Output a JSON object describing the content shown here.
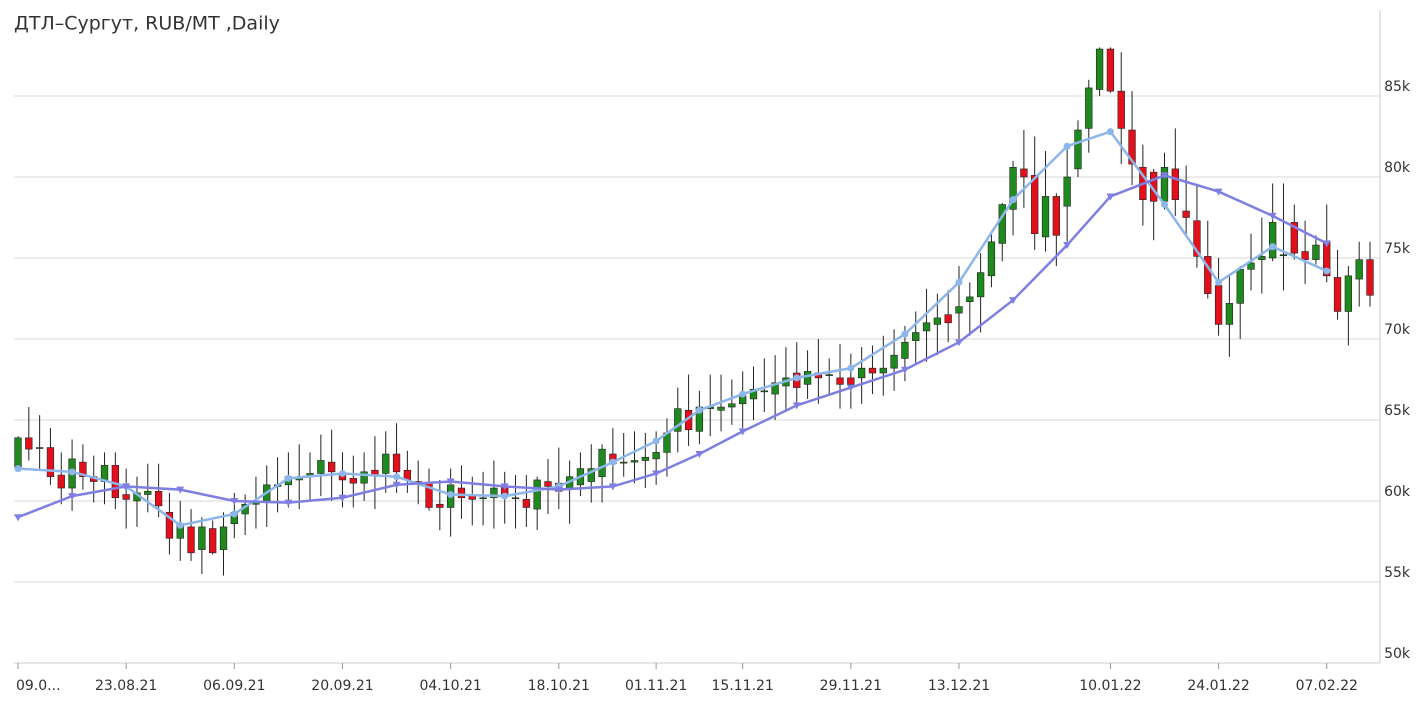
{
  "chart_data": {
    "type": "candlestick",
    "title": "ДТЛ–Сургут, RUB/MT ,Daily",
    "categories": [
      "09.0...",
      null,
      null,
      null,
      null,
      null,
      null,
      null,
      null,
      null,
      "23.08.21",
      null,
      null,
      null,
      null,
      null,
      null,
      null,
      null,
      null,
      "06.09.21",
      null,
      null,
      null,
      null,
      null,
      null,
      null,
      null,
      null,
      "20.09.21",
      null,
      null,
      null,
      null,
      null,
      null,
      null,
      null,
      null,
      "04.10.21",
      null,
      null,
      null,
      null,
      null,
      null,
      null,
      null,
      null,
      "18.10.21",
      null,
      null,
      null,
      null,
      null,
      null,
      null,
      null,
      "01.11.21",
      null,
      null,
      null,
      null,
      null,
      null,
      null,
      "15.11.21",
      null,
      null,
      null,
      null,
      null,
      null,
      null,
      null,
      null,
      "29.11.21",
      null,
      null,
      null,
      null,
      null,
      null,
      null,
      null,
      null,
      "13.12.21",
      null,
      null,
      null,
      null,
      null,
      null,
      null,
      null,
      null,
      null,
      null,
      null,
      null,
      "10.01.22",
      null,
      null,
      null,
      null,
      null,
      null,
      null,
      null,
      null,
      "24.01.22",
      null,
      null,
      null,
      null,
      null,
      null,
      null,
      null,
      null,
      "07.02.22",
      null,
      null,
      null,
      null
    ],
    "open": [
      62100,
      63900,
      63300,
      63300,
      61600,
      60800,
      62400,
      61500,
      61200,
      62200,
      60400,
      60000,
      60400,
      60600,
      59300,
      57700,
      58400,
      57000,
      58300,
      57000,
      58600,
      59200,
      59800,
      60000,
      60900,
      61000,
      61300,
      61500,
      61700,
      62400,
      61700,
      61400,
      61100,
      61900,
      61700,
      62900,
      61900,
      61200,
      61100,
      59800,
      59600,
      60800,
      60400,
      60200,
      60200,
      60900,
      60200,
      60100,
      59500,
      61200,
      61100,
      60700,
      61000,
      61200,
      61500,
      62900,
      62400,
      62400,
      62500,
      62600,
      63000,
      64300,
      65600,
      64300,
      65700,
      65600,
      65800,
      66000,
      66300,
      66800,
      66600,
      67100,
      67900,
      67200,
      67900,
      67800,
      67600,
      67600,
      67600,
      68200,
      67900,
      68200,
      68800,
      69900,
      70500,
      70900,
      71500,
      71600,
      72300,
      72600,
      73900,
      75900,
      78000,
      80500,
      80100,
      76300,
      78800,
      78200,
      80500,
      83000,
      85400,
      87900,
      85300,
      82900,
      80600,
      80300,
      78500,
      80500,
      77900,
      77300,
      75100,
      73300,
      70900,
      72200,
      74300,
      74900,
      75000,
      75200,
      77200,
      75400,
      74900,
      76000,
      73800,
      71700,
      73700,
      74900
    ],
    "high": [
      64000,
      65800,
      65300,
      64500,
      63000,
      63800,
      63500,
      62800,
      63000,
      63000,
      62000,
      61500,
      62300,
      62300,
      60500,
      60000,
      59500,
      59000,
      58800,
      59300,
      60500,
      60400,
      61500,
      62200,
      62700,
      63000,
      63500,
      63000,
      64100,
      64400,
      63000,
      62800,
      63000,
      64000,
      64300,
      64800,
      63100,
      62500,
      62000,
      61300,
      62000,
      62200,
      61500,
      61800,
      62500,
      61800,
      61600,
      61600,
      61500,
      62600,
      63300,
      62500,
      63000,
      63500,
      63500,
      64500,
      64200,
      64300,
      64200,
      64300,
      65100,
      67000,
      67800,
      66800,
      67800,
      67800,
      67500,
      68000,
      68300,
      68800,
      69000,
      69500,
      69800,
      69300,
      70000,
      68800,
      69700,
      69100,
      69500,
      69600,
      70200,
      70600,
      70800,
      71700,
      73100,
      72800,
      73000,
      74500,
      73500,
      75300,
      76500,
      78400,
      81000,
      82900,
      82500,
      81600,
      79000,
      82000,
      83500,
      86000,
      88000,
      88000,
      87700,
      85300,
      82000,
      80500,
      81500,
      83000,
      80700,
      79500,
      77300,
      75000,
      73900,
      74500,
      76500,
      77500,
      79600,
      79600,
      78300,
      77300,
      76400,
      78300,
      75500,
      74500,
      76000,
      76000
    ],
    "low": [
      61800,
      62500,
      62000,
      61000,
      59800,
      59400,
      60700,
      59900,
      59800,
      59500,
      58300,
      58400,
      59300,
      59000,
      56700,
      56300,
      56300,
      55500,
      56700,
      55400,
      57700,
      57900,
      58300,
      58400,
      59300,
      59600,
      59500,
      60000,
      60300,
      60000,
      59600,
      59600,
      60000,
      59500,
      60500,
      60500,
      60500,
      59800,
      59400,
      58200,
      57800,
      58900,
      58500,
      58500,
      58300,
      58600,
      58300,
      58400,
      58200,
      59200,
      59500,
      58600,
      60300,
      59900,
      59900,
      61000,
      61500,
      61100,
      60800,
      61000,
      61500,
      63000,
      63400,
      63500,
      64000,
      64300,
      64700,
      64500,
      65000,
      65500,
      65000,
      65500,
      66000,
      66300,
      66000,
      66500,
      65700,
      65700,
      66000,
      66600,
      66500,
      66800,
      67400,
      68400,
      68600,
      69000,
      69800,
      70000,
      70200,
      70400,
      73200,
      74800,
      76400,
      78100,
      75500,
      75400,
      74500,
      76000,
      80000,
      81500,
      85000,
      85200,
      80800,
      79500,
      77000,
      76100,
      78000,
      77600,
      76500,
      74400,
      72500,
      70200,
      68900,
      70000,
      73000,
      72800,
      74800,
      73000,
      74900,
      73400,
      74600,
      73500,
      71200,
      69600,
      72000,
      72000
    ],
    "close": [
      63900,
      63200,
      63300,
      61500,
      60800,
      62600,
      61500,
      61200,
      62200,
      60200,
      60100,
      60500,
      60600,
      59700,
      57700,
      58600,
      56800,
      58400,
      56800,
      58400,
      59300,
      59800,
      60000,
      61000,
      61000,
      61500,
      61500,
      61700,
      62500,
      61800,
      61300,
      61100,
      61800,
      61600,
      62900,
      61800,
      61300,
      61100,
      59600,
      59600,
      61000,
      60200,
      60100,
      60200,
      60800,
      60400,
      60200,
      59600,
      61300,
      60900,
      60600,
      61500,
      62000,
      62000,
      63200,
      62300,
      62400,
      62500,
      62700,
      63000,
      64200,
      65700,
      64400,
      65800,
      65800,
      65800,
      66000,
      66500,
      66900,
      66800,
      67300,
      67600,
      67000,
      68000,
      67600,
      67800,
      67200,
      67200,
      68200,
      67900,
      68200,
      69000,
      69800,
      70400,
      71000,
      71300,
      71000,
      72000,
      72600,
      74100,
      76000,
      78300,
      80600,
      80000,
      76500,
      78800,
      76400,
      80000,
      82900,
      85500,
      87900,
      85300,
      83000,
      80800,
      78600,
      78500,
      80600,
      78600,
      77500,
      75100,
      72800,
      70900,
      72200,
      74300,
      74700,
      75100,
      77200,
      75200,
      75300,
      74900,
      75800,
      73900,
      71700,
      73900,
      74900,
      72700
    ],
    "up_color": "#1e8a1e",
    "down_color": "#e3101c",
    "lines": [
      {
        "color": "#8db6ea",
        "marker": "circle",
        "x": [
          0,
          5,
          10,
          15,
          20,
          25,
          30,
          35,
          40,
          45,
          50,
          55,
          59,
          63,
          67,
          72,
          77,
          82,
          87,
          92,
          97,
          101,
          106,
          111,
          116,
          121
        ],
        "values": [
          62000,
          61800,
          60900,
          58500,
          59200,
          61400,
          61700,
          61500,
          60400,
          60300,
          60900,
          62400,
          63700,
          65600,
          66600,
          67600,
          68200,
          70300,
          73500,
          78600,
          81900,
          82800,
          78300,
          73500,
          75700,
          74200
        ]
      },
      {
        "color": "#7f7fe3",
        "marker": "triangle",
        "x": [
          0,
          5,
          10,
          15,
          20,
          25,
          30,
          35,
          40,
          45,
          50,
          55,
          59,
          63,
          67,
          72,
          77,
          82,
          87,
          92,
          97,
          101,
          106,
          111,
          116,
          121
        ],
        "values": [
          59000,
          60300,
          60900,
          60700,
          60000,
          59900,
          60200,
          61000,
          61200,
          60900,
          60700,
          60900,
          61700,
          62900,
          64300,
          65900,
          67000,
          68100,
          69800,
          72400,
          75800,
          78800,
          80100,
          79100,
          77600,
          75900
        ]
      }
    ],
    "ylim": [
      50000,
      90000
    ],
    "yticks": [
      {
        "value": 50000,
        "label": "50k"
      },
      {
        "value": 55000,
        "label": "55k"
      },
      {
        "value": 60000,
        "label": "60k"
      },
      {
        "value": 65000,
        "label": "65k"
      },
      {
        "value": 70000,
        "label": "70k"
      },
      {
        "value": 75000,
        "label": "75k"
      },
      {
        "value": 80000,
        "label": "80k"
      },
      {
        "value": 85000,
        "label": "85k"
      }
    ],
    "grid": true
  }
}
